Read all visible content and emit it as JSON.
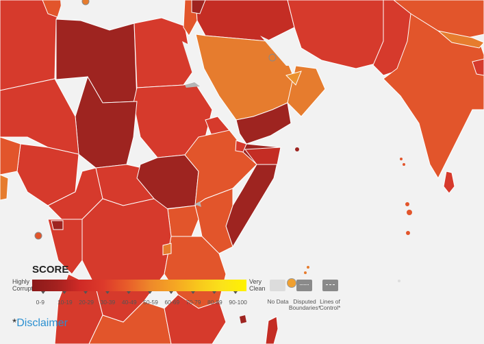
{
  "legend": {
    "title": "SCORE",
    "left_label": [
      "Highly",
      "Corrupt"
    ],
    "right_label": [
      "Very",
      "Clean"
    ],
    "ranges": [
      "0-9",
      "10-19",
      "20-29",
      "30-39",
      "40-49",
      "50-59",
      "60-69",
      "70-79",
      "80-89",
      "90-100"
    ],
    "colors": [
      "#8b1a1a",
      "#a3211f",
      "#cf2a26",
      "#dd3a2b",
      "#e85d2a",
      "#ee8a2a",
      "#f5a623",
      "#f8c81c",
      "#fbe31a",
      "#fff200"
    ],
    "no_data": "No Data",
    "disputed": [
      "Disputed",
      "Boundaries*"
    ],
    "lines_of_control": [
      "Lines of",
      "Control*"
    ]
  },
  "footer": {
    "asterisk": "*",
    "disclaimer": "Disclaimer"
  },
  "map_colors": {
    "sea": "#f2f2f2",
    "border": "#ffffff",
    "darkest": "#9e2420",
    "dark": "#c42d24",
    "red": "#d63a2c",
    "orange_red": "#e2552b",
    "orange": "#e67c2e",
    "light_orange": "#eb922f"
  }
}
